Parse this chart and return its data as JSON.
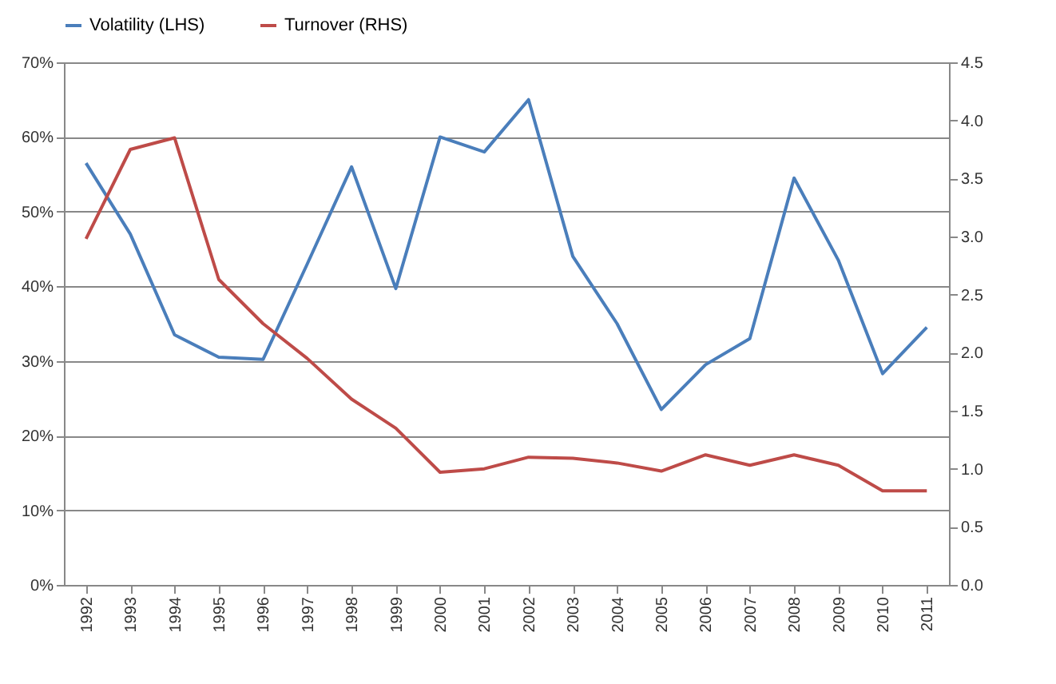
{
  "chart_data": {
    "type": "line",
    "categories": [
      "1992",
      "1993",
      "1994",
      "1995",
      "1996",
      "1997",
      "1998",
      "1999",
      "2000",
      "2001",
      "2002",
      "2003",
      "2004",
      "2005",
      "2006",
      "2007",
      "2008",
      "2009",
      "2010",
      "2011"
    ],
    "series": [
      {
        "name": "Volatility (LHS)",
        "color": "#4a7ebb",
        "values": [
          56.5,
          47,
          33.5,
          30.5,
          30.2,
          43,
          56,
          39.7,
          60,
          58,
          65,
          44,
          35,
          23.5,
          29.5,
          33,
          54.5,
          43.5,
          28.3,
          34.5
        ]
      },
      {
        "name": "Turnover (RHS)",
        "color": "#be4b48",
        "axis": "y2",
        "values": [
          2.98,
          3.75,
          3.85,
          2.63,
          2.25,
          1.95,
          1.6,
          1.35,
          0.97,
          1.0,
          1.1,
          1.09,
          1.05,
          0.98,
          1.12,
          1.03,
          1.12,
          1.03,
          0.81,
          0.81
        ]
      }
    ],
    "ylim": [
      0,
      70
    ],
    "yticks": [
      {
        "value": 0,
        "label": "0%"
      },
      {
        "value": 10,
        "label": "10%"
      },
      {
        "value": 20,
        "label": "20%"
      },
      {
        "value": 30,
        "label": "30%"
      },
      {
        "value": 40,
        "label": "40%"
      },
      {
        "value": 50,
        "label": "50%"
      },
      {
        "value": 60,
        "label": "60%"
      },
      {
        "value": 70,
        "label": "70%"
      }
    ],
    "y2lim": [
      0,
      4.5
    ],
    "y2ticks": [
      {
        "value": 0,
        "label": "0.0"
      },
      {
        "value": 0.5,
        "label": "0.5"
      },
      {
        "value": 1,
        "label": "1.0"
      },
      {
        "value": 1.5,
        "label": "1.5"
      },
      {
        "value": 2,
        "label": "2.0"
      },
      {
        "value": 2.5,
        "label": "2.5"
      },
      {
        "value": 3,
        "label": "3.0"
      },
      {
        "value": 3.5,
        "label": "3.5"
      },
      {
        "value": 4,
        "label": "4.0"
      },
      {
        "value": 4.5,
        "label": "4.5"
      }
    ],
    "grid": "y",
    "legend": "top",
    "line_style": "solid",
    "marker": "none"
  }
}
